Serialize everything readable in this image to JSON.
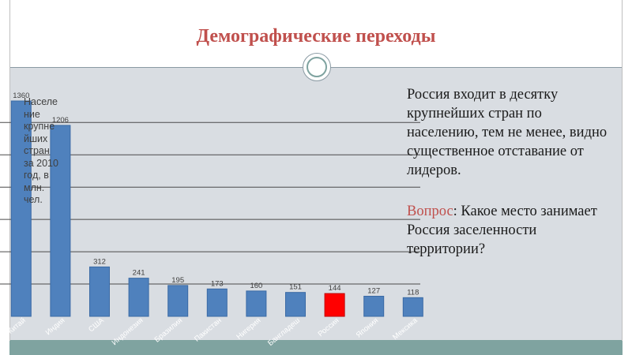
{
  "slide": {
    "title": "Демографические переходы",
    "chart_note": "Население крупнейших стран за 2010 год, в млн. чел.",
    "paragraph": "Россия входит в десятку крупнейших стран по населению, тем не менее, видно существенное отставание от лидеров.",
    "question_word": "Вопрос",
    "question_rest": ": Какое место занимает Россия заселенности территории?"
  },
  "colors": {
    "title": "#c0504d",
    "bar": "#4f81bd",
    "highlight_bar": "#ff0000",
    "background": "#d9dde2",
    "accent": "#7fa3a0"
  },
  "chart_data": {
    "type": "bar",
    "title": "Население крупнейших стран за 2010 год, в млн. чел.",
    "categories": [
      "Китай",
      "Индия",
      "США",
      "Индонезия",
      "Бразилия",
      "Пакистан",
      "Нигерия",
      "Бангладеш",
      "Россия",
      "Япония",
      "Мексика"
    ],
    "values": [
      1360,
      1206,
      312,
      241,
      195,
      173,
      160,
      151,
      144,
      127,
      118
    ],
    "data_labels": [
      "1360",
      "1206",
      "312",
      "241",
      "195",
      "173",
      "160",
      "151",
      "144",
      "127",
      "118"
    ],
    "highlight_category": "Россия",
    "ylim": [
      0,
      1360
    ],
    "grid": true,
    "xlabel": "",
    "ylabel": ""
  }
}
